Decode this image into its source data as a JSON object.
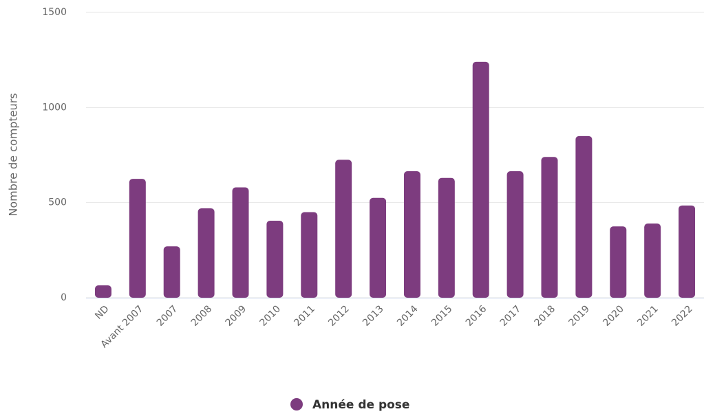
{
  "chart_data": {
    "type": "bar",
    "y_label": "Nombre de compteurs",
    "categories": [
      "ND",
      "Avant 2007",
      "2007",
      "2008",
      "2009",
      "2010",
      "2011",
      "2012",
      "2013",
      "2014",
      "2015",
      "2016",
      "2017",
      "2018",
      "2019",
      "2020",
      "2021",
      "2022"
    ],
    "series": [
      {
        "name": "Année de pose",
        "color": "#7d3c7f",
        "values": [
          65,
          625,
          270,
          470,
          580,
          405,
          450,
          725,
          525,
          665,
          630,
          1240,
          665,
          740,
          850,
          375,
          390,
          485
        ]
      }
    ],
    "ylim": [
      0,
      1500
    ],
    "yticks": [
      0,
      500,
      1000,
      1500
    ],
    "grid": true,
    "legend": "bottom"
  }
}
